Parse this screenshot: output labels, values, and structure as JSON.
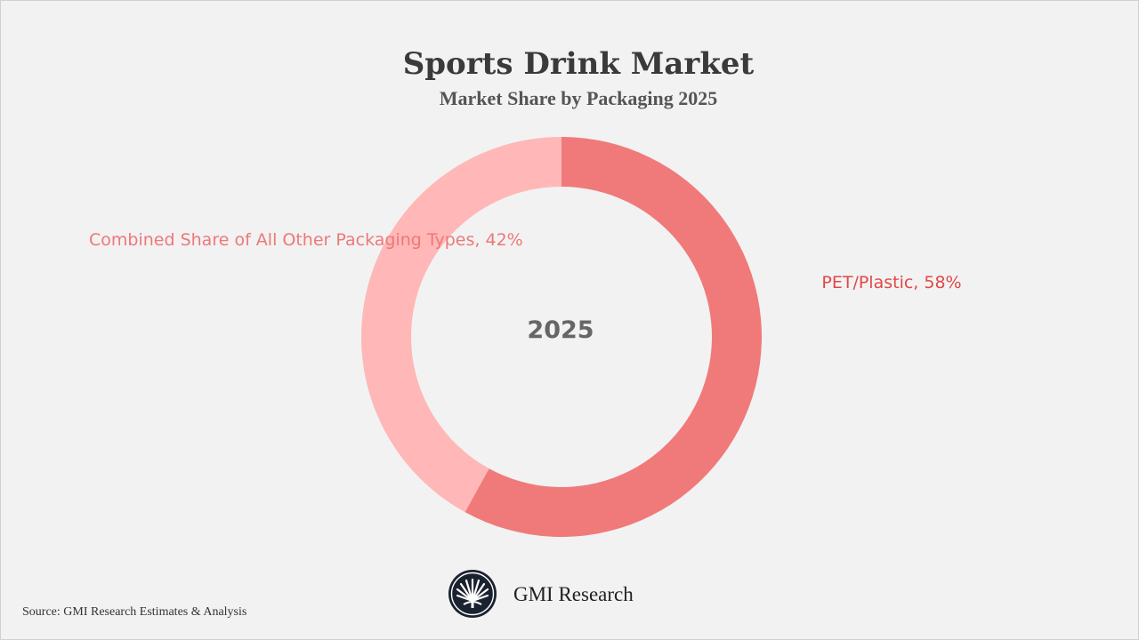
{
  "chart_data": {
    "type": "pie",
    "variant": "donut",
    "title": "Sports Drink Market",
    "subtitle": "Market Share by Packaging 2025",
    "center_label": "2025",
    "unit": "%",
    "slices": [
      {
        "label": "PET/Plastic, 58%",
        "name": "PET/Plastic",
        "value": 58,
        "color": "#f07a7a",
        "label_color": "#e04848"
      },
      {
        "label": "Combined Share of All Other Packaging Types, 42%",
        "name": "Combined Share of All Other Packaging Types",
        "value": 42,
        "color": "#ffb7b7",
        "label_color": "#ee7878"
      }
    ],
    "legend": "none"
  },
  "footer": {
    "brand": "GMI Research",
    "source": "Source: GMI Research Estimates & Analysis",
    "logo_icon": "fan-palm-logo-icon"
  }
}
